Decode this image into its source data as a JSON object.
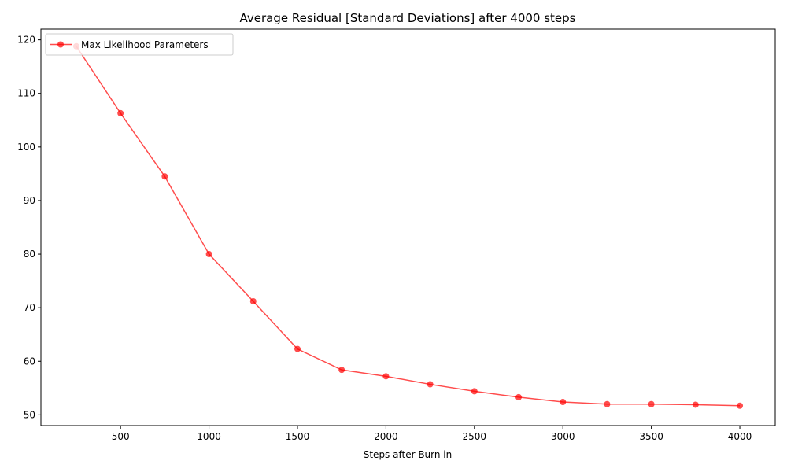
{
  "chart_data": {
    "type": "line",
    "title": "Average Residual [Standard Deviations] after 4000 steps",
    "xlabel": "Steps after Burn in",
    "ylabel": "",
    "xlim": [
      50,
      4200
    ],
    "ylim": [
      48,
      122
    ],
    "xticks": [
      500,
      1000,
      1500,
      2000,
      2500,
      3000,
      3500,
      4000
    ],
    "yticks": [
      50,
      60,
      70,
      80,
      90,
      100,
      110,
      120
    ],
    "grid": false,
    "legend_position": "upper-left",
    "series": [
      {
        "name": "Max Likelihood Parameters",
        "color": "#ff0000",
        "marker": "circle",
        "x": [
          250,
          500,
          750,
          1000,
          1250,
          1500,
          1750,
          2000,
          2250,
          2500,
          2750,
          3000,
          3250,
          3500,
          3750,
          4000
        ],
        "y": [
          118.8,
          106.3,
          94.5,
          80.0,
          71.2,
          62.3,
          58.4,
          57.2,
          55.7,
          54.4,
          53.3,
          52.4,
          52.0,
          52.0,
          51.9,
          51.7
        ]
      }
    ]
  }
}
